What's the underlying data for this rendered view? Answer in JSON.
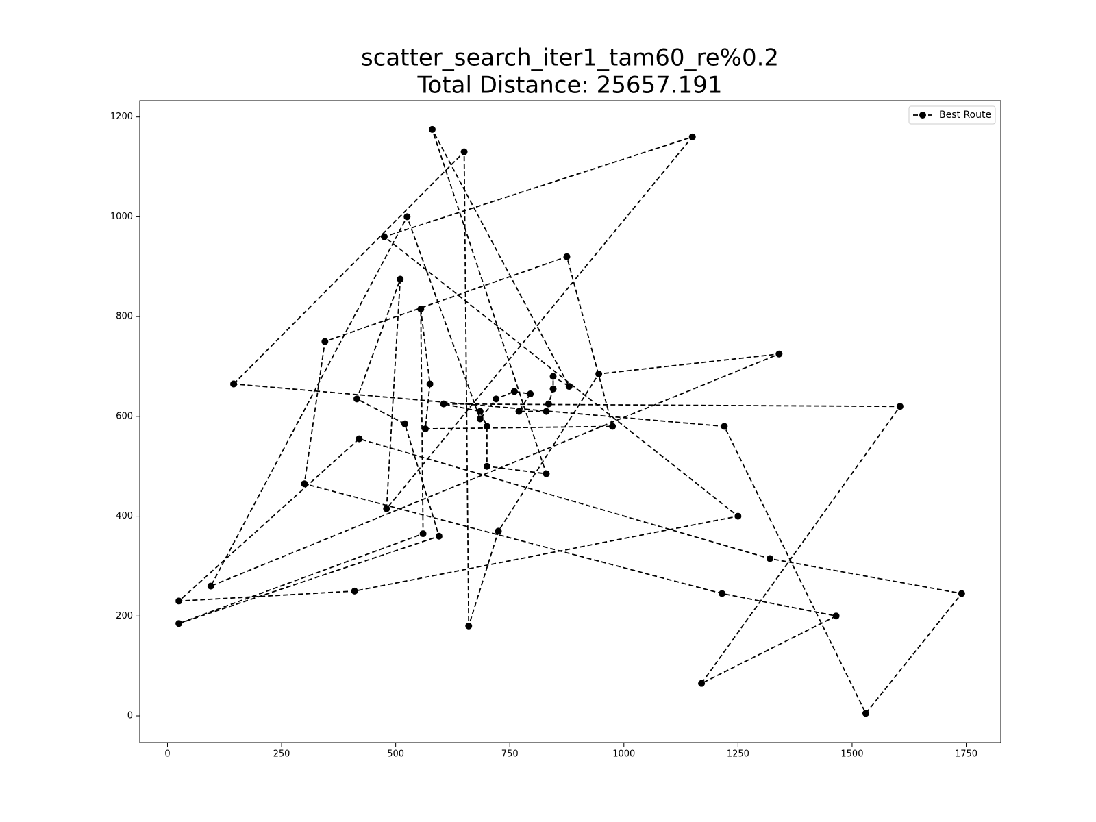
{
  "chart_data": {
    "type": "line",
    "title": "scatter_search_iter1_tam60_re%0.2",
    "subtitle": "Total Distance: 25657.191",
    "xlim": [
      -60.75,
      1825.75
    ],
    "ylim": [
      -53.5,
      1232.5
    ],
    "xticks": [
      0,
      250,
      500,
      750,
      1000,
      1250,
      1500,
      1750
    ],
    "yticks": [
      0,
      200,
      400,
      600,
      800,
      1000,
      1200
    ],
    "legend": "upper right",
    "series": [
      {
        "name": "Best Route",
        "color": "#000000",
        "dashed": true,
        "marker": "circle",
        "x": [
          145,
          650,
          660,
          725,
          945,
          1340,
          95,
          525,
          685,
          720,
          760,
          795,
          770,
          830,
          835,
          845,
          845,
          880,
          580,
          830,
          700,
          700,
          685,
          605,
          1605,
          1170,
          1465,
          1215,
          300,
          345,
          875,
          975,
          565,
          575,
          555,
          560,
          25,
          595,
          520,
          415,
          510,
          480,
          1150,
          475,
          1250,
          410,
          25,
          420,
          1320,
          1740,
          1530,
          1220,
          145
        ],
        "values": [
          665,
          1130,
          180,
          370,
          685,
          725,
          260,
          1000,
          595,
          635,
          650,
          645,
          610,
          610,
          625,
          655,
          680,
          660,
          1175,
          485,
          500,
          580,
          610,
          625,
          620,
          65,
          200,
          245,
          465,
          750,
          920,
          580,
          575,
          665,
          815,
          365,
          185,
          360,
          585,
          635,
          875,
          415,
          1160,
          960,
          400,
          250,
          230,
          555,
          315,
          245,
          5,
          580,
          665
        ]
      }
    ]
  }
}
